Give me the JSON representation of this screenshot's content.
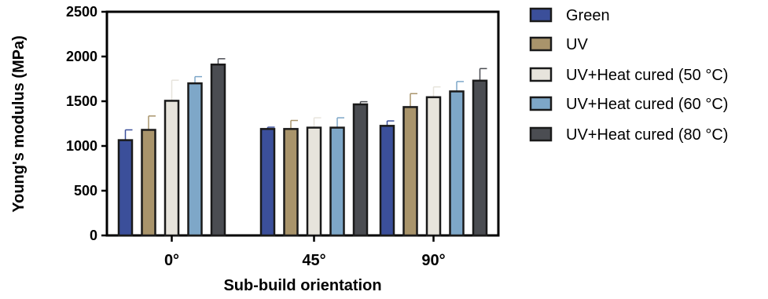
{
  "chart_data": {
    "type": "bar",
    "xlabel": "Sub-build orientation",
    "ylabel": "Young's modulus (MPa)",
    "ylim": [
      0,
      2500
    ],
    "yticks": [
      0,
      500,
      1000,
      1500,
      2000,
      2500
    ],
    "categories": [
      "0°",
      "45°",
      "90°"
    ],
    "grid": false,
    "legend_position": "right",
    "series": [
      {
        "name": "Green",
        "color": "#3b4f9a",
        "values": [
          1065,
          1190,
          1225
        ],
        "errors": [
          115,
          20,
          55
        ]
      },
      {
        "name": "UV",
        "color": "#a9946b",
        "values": [
          1180,
          1190,
          1435
        ],
        "errors": [
          155,
          95,
          150
        ]
      },
      {
        "name": "UV+Heat cured (50 °C)",
        "color": "#e7e4dc",
        "values": [
          1505,
          1205,
          1545
        ],
        "errors": [
          230,
          110,
          115
        ]
      },
      {
        "name": "UV+Heat cured (60 °C)",
        "color": "#7ea7c8",
        "values": [
          1700,
          1205,
          1610
        ],
        "errors": [
          75,
          110,
          110
        ]
      },
      {
        "name": "UV+Heat cured (80 °C)",
        "color": "#4b4d52",
        "values": [
          1910,
          1465,
          1730
        ],
        "errors": [
          65,
          30,
          135
        ]
      }
    ]
  }
}
